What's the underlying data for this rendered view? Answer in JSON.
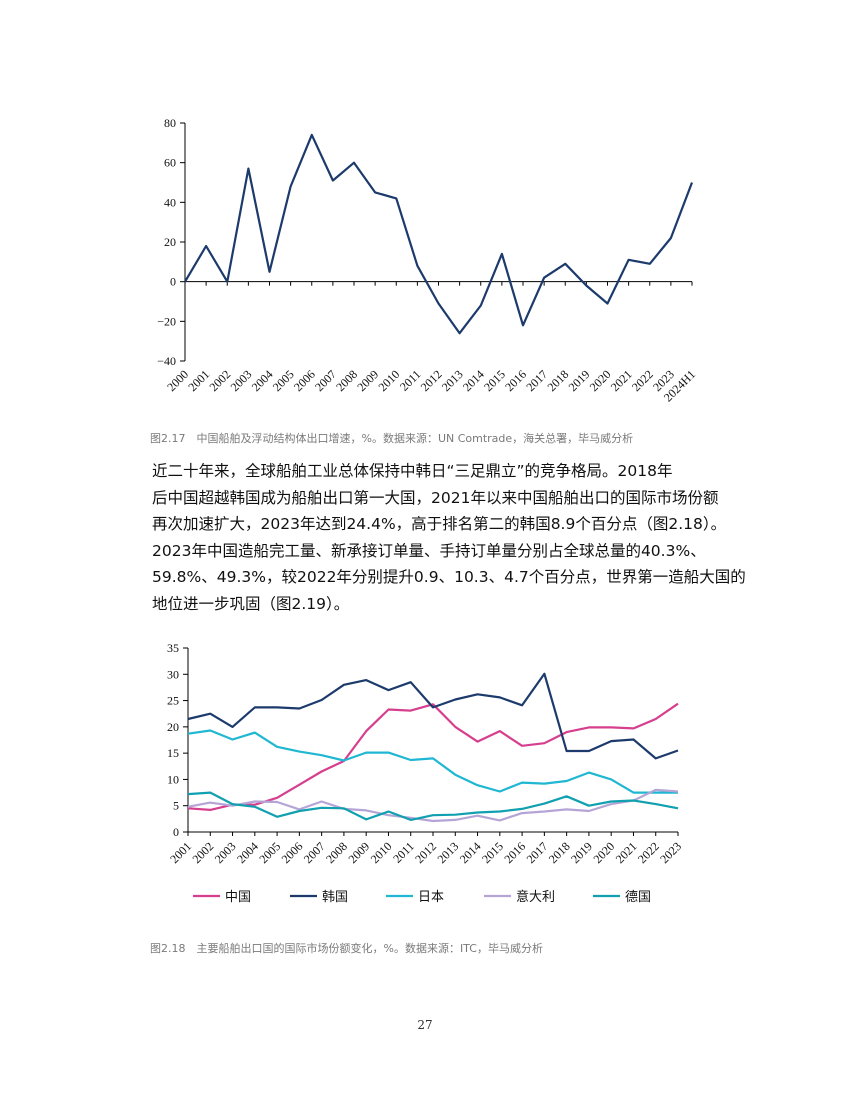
{
  "caption_1": "图2.17　中国船舶及浮动结构体出口增速，%。数据来源：UN Comtrade，海关总署，毕马威分析",
  "paragraph_lines": [
    "近二十年来，全球船舶工业总体保持中韩日“三足鼎立”的竞争格局。2018年",
    "后中国超越韩国成为船舶出口第一大国，2021年以来中国船舶出口的国际市场份额",
    "再次加速扩大，2023年达到24.4%，高于排名第二的韩国8.9个百分点（图2.18）。",
    "2023年中国造船完工量、新承接订单量、手持订单量分别占全球总量的40.3%、",
    "59.8%、49.3%，较2022年分别提升0.9、10.3、4.7个百分点，世界第一造船大国的",
    "地位进一步巩固（图2.19）。"
  ],
  "caption_2": "图2.18　主要船舶出口国的国际市场份额变化，%。数据来源：ITC，毕马威分析",
  "page_number": "27",
  "chart_data": [
    {
      "type": "line",
      "title": "",
      "xlabel": "",
      "ylabel": "",
      "ylim": [
        -40,
        80
      ],
      "yticks": [
        "80",
        "60",
        "40",
        "20",
        "0",
        "−20",
        "−40"
      ],
      "ytick_values": [
        80,
        60,
        40,
        20,
        0,
        -20,
        -40
      ],
      "categories": [
        "2000",
        "2001",
        "2002",
        "2003",
        "2004",
        "2005",
        "2006",
        "2007",
        "2008",
        "2009",
        "2010",
        "2011",
        "2012",
        "2013",
        "2014",
        "2015",
        "2016",
        "2017",
        "2018",
        "2019",
        "2020",
        "2021",
        "2022",
        "2023",
        "2024H1"
      ],
      "series": [
        {
          "name": "中国船舶及浮动结构体出口增速",
          "color": "#1c3a6b",
          "values": [
            0,
            18,
            0,
            57,
            5,
            48,
            74,
            51,
            60,
            45,
            42,
            8,
            -11,
            -26,
            -12,
            14,
            -22,
            2,
            9,
            -2,
            -11,
            11,
            9,
            22,
            50
          ]
        }
      ]
    },
    {
      "type": "line",
      "title": "",
      "xlabel": "",
      "ylabel": "",
      "ylim": [
        0,
        35
      ],
      "yticks": [
        "35",
        "30",
        "25",
        "20",
        "15",
        "10",
        "5",
        "0"
      ],
      "ytick_values": [
        35,
        30,
        25,
        20,
        15,
        10,
        5,
        0
      ],
      "categories": [
        "2001",
        "2002",
        "2003",
        "2004",
        "2005",
        "2006",
        "2007",
        "2008",
        "2009",
        "2010",
        "2011",
        "2012",
        "2013",
        "2014",
        "2015",
        "2016",
        "2017",
        "2018",
        "2019",
        "2020",
        "2021",
        "2022",
        "2023"
      ],
      "legend_position": "bottom",
      "series": [
        {
          "name": "中国",
          "color": "#d63e8e",
          "values": [
            4.5,
            4.2,
            5.2,
            5.2,
            6.5,
            9.0,
            11.5,
            13.5,
            19.2,
            23.3,
            23.1,
            24.3,
            20.0,
            17.2,
            19.2,
            16.4,
            16.9,
            19.0,
            19.9,
            19.9,
            19.7,
            21.5,
            24.4
          ]
        },
        {
          "name": "韩国",
          "color": "#1c3a6b",
          "values": [
            21.5,
            22.5,
            20.0,
            23.7,
            23.7,
            23.5,
            25.1,
            28.0,
            28.9,
            27.0,
            28.5,
            23.7,
            25.2,
            26.2,
            25.6,
            24.1,
            30.1,
            15.4,
            15.4,
            17.3,
            17.6,
            14.0,
            15.5
          ]
        },
        {
          "name": "日本",
          "color": "#1fb7d2",
          "values": [
            18.7,
            19.3,
            17.6,
            18.9,
            16.2,
            15.3,
            14.6,
            13.6,
            15.1,
            15.1,
            13.7,
            14.0,
            10.9,
            8.9,
            7.7,
            9.4,
            9.2,
            9.7,
            11.3,
            10.0,
            7.5,
            7.5,
            7.5
          ]
        },
        {
          "name": "意大利",
          "color": "#b5a5d6",
          "values": [
            4.8,
            5.6,
            5.0,
            5.8,
            5.7,
            4.3,
            5.8,
            4.4,
            4.1,
            3.2,
            2.7,
            2.1,
            2.3,
            3.1,
            2.2,
            3.6,
            3.9,
            4.3,
            4.0,
            5.3,
            6.0,
            8.0,
            7.7
          ]
        },
        {
          "name": "德国",
          "color": "#10a0b0",
          "values": [
            7.2,
            7.5,
            5.3,
            4.8,
            2.9,
            4.0,
            4.6,
            4.5,
            2.4,
            3.9,
            2.3,
            3.2,
            3.3,
            3.7,
            3.9,
            4.4,
            5.4,
            6.8,
            5.0,
            5.8,
            6.0,
            5.3,
            4.5
          ]
        }
      ]
    }
  ]
}
